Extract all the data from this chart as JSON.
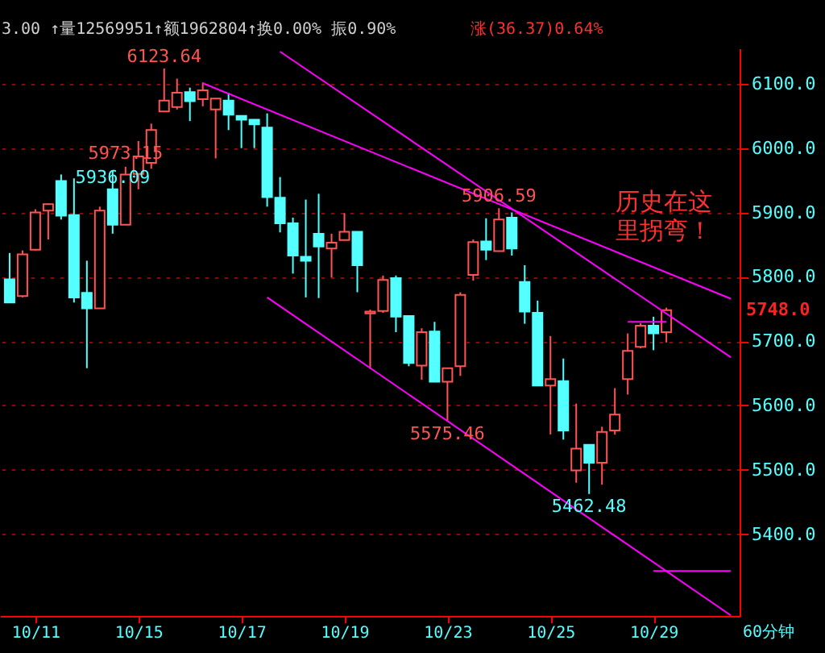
{
  "chart_data": {
    "type": "candlestick",
    "categories": [
      null,
      null,
      "10/11",
      null,
      null,
      null,
      null,
      null,
      null,
      null,
      "10/15",
      null,
      null,
      null,
      null,
      null,
      null,
      null,
      "10/17",
      null,
      null,
      null,
      null,
      null,
      null,
      null,
      "10/19",
      null,
      null,
      null,
      null,
      null,
      null,
      null,
      "10/23",
      null,
      null,
      null,
      null,
      null,
      null,
      null,
      "10/25",
      null,
      null,
      null,
      null,
      null,
      null,
      null,
      "10/29",
      null,
      null,
      null,
      null,
      null,
      null
    ],
    "ylim": [
      5273,
      6155
    ],
    "yticks": [
      {
        "value": 5400,
        "label": "5400.0"
      },
      {
        "value": 5500,
        "label": "5500.0"
      },
      {
        "value": 5600,
        "label": "5600.0"
      },
      {
        "value": 5700,
        "label": "5700.0"
      },
      {
        "value": 5800,
        "label": "5800.0"
      },
      {
        "value": 5900,
        "label": "5900.0"
      },
      {
        "value": 6000,
        "label": "6000.0"
      },
      {
        "value": 6100,
        "label": "6100.0"
      }
    ],
    "grid": "y",
    "series": [
      {
        "type": "candlestick",
        "color": "#ff5454",
        "ohlc": [
          null,
          [
            5770,
            5841,
            5768,
            5835
          ],
          [
            5842,
            5905,
            5841,
            5900
          ],
          [
            5903,
            5914,
            5858,
            5913
          ],
          null,
          null,
          null,
          [
            5751,
            5909,
            5751,
            5903
          ],
          null,
          [
            5881,
            5971,
            5881,
            5959
          ],
          [
            5960,
            6011,
            5936,
            5987
          ],
          [
            5977,
            6038,
            5968,
            6028
          ],
          [
            6057,
            6123.64,
            6057,
            6074
          ],
          [
            6064,
            6108,
            6060,
            6086
          ],
          null,
          [
            6076,
            6102,
            6065,
            6090
          ],
          [
            6060,
            6077,
            5984,
            6077
          ],
          null,
          null,
          null,
          null,
          null,
          null,
          null,
          null,
          [
            5844,
            5867,
            5799,
            5853
          ],
          [
            5857,
            5899,
            5857,
            5870
          ],
          null,
          [
            5743,
            5749,
            5657,
            5746
          ],
          [
            5747,
            5802,
            5744,
            5795
          ],
          null,
          null,
          [
            5662,
            5720,
            5640,
            5714
          ],
          null,
          [
            5637,
            5658,
            5575.46,
            5658
          ],
          [
            5661,
            5776,
            5646,
            5772
          ],
          [
            5803,
            5858,
            5794,
            5854
          ],
          null,
          [
            5840,
            5906.59,
            5840,
            5889
          ],
          null,
          null,
          null,
          [
            5631,
            5708,
            5555,
            5641
          ],
          null,
          [
            5499,
            5603,
            5480,
            5533
          ],
          null,
          [
            5511,
            5567,
            5477,
            5559
          ],
          [
            5561,
            5627,
            5555,
            5586
          ],
          [
            5641,
            5712,
            5617,
            5685
          ],
          [
            5691,
            5728,
            5689,
            5724
          ],
          null,
          [
            5714,
            5752,
            5698,
            5748
          ],
          null,
          null,
          null,
          null,
          null
        ]
      },
      {
        "type": "candlestick",
        "color": "#54ffff",
        "ohlc": [
          [
            5796,
            5837,
            5760,
            5760
          ],
          null,
          null,
          null,
          [
            5949,
            5959,
            5889,
            5895
          ],
          [
            5896,
            5953,
            5760,
            5768
          ],
          [
            5775,
            5825,
            5658,
            5751
          ],
          null,
          [
            5936.09,
            5966,
            5867,
            5881
          ],
          null,
          null,
          null,
          null,
          null,
          [
            6087,
            6094,
            6042,
            6073
          ],
          null,
          null,
          [
            6074,
            6086,
            6028,
            6052
          ],
          [
            6050,
            6050,
            6000,
            6044
          ],
          [
            6044,
            6045,
            6000,
            6037
          ],
          [
            6032,
            6054,
            5909,
            5924
          ],
          [
            5923,
            5955,
            5869,
            5883
          ],
          [
            5883,
            5892,
            5805,
            5833
          ],
          [
            5831,
            5920,
            5768,
            5825
          ],
          [
            5867,
            5929,
            5767,
            5847
          ],
          null,
          null,
          [
            5870,
            5870,
            5776,
            5818
          ],
          null,
          null,
          [
            5798,
            5802,
            5714,
            5738
          ],
          [
            5739,
            5739,
            5661,
            5666
          ],
          null,
          [
            5715,
            5730,
            5637,
            5637
          ],
          null,
          null,
          null,
          [
            5855,
            5891,
            5826,
            5842
          ],
          null,
          [
            5892,
            5900,
            5833,
            5844
          ],
          [
            5792,
            5818,
            5727,
            5746
          ],
          [
            5744,
            5763,
            5631,
            5631
          ],
          null,
          [
            5638,
            5673,
            5547,
            5561
          ],
          null,
          [
            5539,
            5539,
            5462.48,
            5511
          ],
          null,
          null,
          null,
          null,
          [
            5724,
            5738,
            5686,
            5712
          ],
          null,
          null,
          null,
          null,
          null,
          null
        ]
      },
      {
        "type": "line",
        "color": "#ff00ff",
        "values": [
          null,
          null,
          null,
          null,
          null,
          null,
          null,
          null,
          null,
          null,
          null,
          null,
          null,
          null,
          null,
          6101,
          null,
          null,
          null,
          null,
          null,
          null,
          null,
          null,
          null,
          null,
          null,
          null,
          null,
          null,
          null,
          null,
          null,
          null,
          null,
          null,
          null,
          null,
          null,
          null,
          null,
          null,
          null,
          null,
          null,
          null,
          null,
          null,
          null,
          null,
          null,
          null,
          null,
          null,
          null,
          null,
          5766
        ]
      },
      {
        "type": "line",
        "color": "#ff00ff",
        "values": [
          null,
          null,
          null,
          null,
          null,
          null,
          null,
          null,
          null,
          null,
          null,
          null,
          null,
          null,
          null,
          null,
          null,
          null,
          null,
          null,
          null,
          6150,
          null,
          null,
          null,
          null,
          null,
          null,
          null,
          null,
          null,
          null,
          null,
          null,
          null,
          null,
          null,
          null,
          null,
          null,
          null,
          null,
          null,
          null,
          null,
          null,
          null,
          null,
          null,
          null,
          null,
          null,
          null,
          null,
          null,
          null,
          5675
        ]
      },
      {
        "type": "line",
        "color": "#ff00ff",
        "values": [
          null,
          null,
          null,
          null,
          null,
          null,
          null,
          null,
          null,
          null,
          null,
          null,
          null,
          null,
          null,
          null,
          null,
          null,
          null,
          null,
          5768,
          null,
          null,
          null,
          null,
          null,
          null,
          null,
          null,
          null,
          null,
          null,
          null,
          null,
          null,
          null,
          null,
          null,
          null,
          null,
          null,
          null,
          null,
          null,
          null,
          null,
          null,
          null,
          null,
          null,
          null,
          null,
          null,
          null,
          null,
          null,
          5274
        ]
      },
      {
        "type": "line",
        "color": "#ff00ff",
        "values": [
          null,
          null,
          null,
          null,
          null,
          null,
          null,
          null,
          null,
          null,
          null,
          null,
          null,
          null,
          null,
          null,
          null,
          null,
          null,
          null,
          null,
          null,
          null,
          null,
          null,
          null,
          null,
          null,
          null,
          null,
          null,
          null,
          null,
          null,
          null,
          null,
          null,
          null,
          null,
          null,
          null,
          null,
          null,
          null,
          null,
          null,
          null,
          null,
          null,
          null,
          5343,
          null,
          null,
          null,
          null,
          null,
          5343
        ]
      },
      {
        "type": "line",
        "color": "#ff00ff",
        "values": [
          null,
          null,
          null,
          null,
          null,
          null,
          null,
          null,
          null,
          null,
          null,
          null,
          null,
          null,
          null,
          null,
          null,
          null,
          null,
          null,
          null,
          null,
          null,
          null,
          null,
          null,
          null,
          null,
          null,
          null,
          null,
          null,
          null,
          null,
          null,
          null,
          null,
          null,
          null,
          null,
          null,
          null,
          null,
          null,
          null,
          null,
          null,
          null,
          5730,
          null,
          null,
          5730,
          null,
          null,
          null,
          null,
          null
        ]
      }
    ],
    "annotations": [
      "3.00 ↑量12569951↑额1962804↑换0.00% 振0.90%",
      "涨(36.37)0.64%",
      "历史在这里拐弯！",
      "60分钟",
      "5748.0",
      {
        "text": "6123.64",
        "y": 6123.64
      },
      {
        "text": "5973.15",
        "y": 5973.15
      },
      {
        "text": "5936.09",
        "y": 5936.09
      },
      {
        "text": "5906.59",
        "y": 5906.59
      },
      {
        "text": "5575.46",
        "y": 5575.46
      },
      {
        "text": "5462.48",
        "y": 5462.48
      }
    ]
  }
}
